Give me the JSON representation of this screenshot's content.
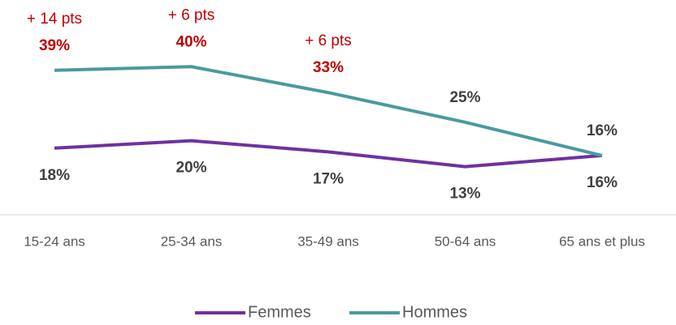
{
  "chart_data": {
    "type": "line",
    "categories": [
      "15-24 ans",
      "25-34 ans",
      "35-49 ans",
      "50-64 ans",
      "65 ans et plus"
    ],
    "series": [
      {
        "name": "Femmes",
        "color": "#7030a0",
        "values": [
          18,
          20,
          17,
          13,
          16
        ],
        "value_labels": [
          "18%",
          "20%",
          "17%",
          "13%",
          "16%"
        ],
        "value_label_colors": [
          "#404040",
          "#404040",
          "#404040",
          "#404040",
          "#404040"
        ]
      },
      {
        "name": "Hommes",
        "color": "#4a9a9e",
        "values": [
          39,
          40,
          33,
          25,
          16
        ],
        "value_labels": [
          "39%",
          "40%",
          "33%",
          "25%",
          "16%"
        ],
        "value_label_colors": [
          "#c00000",
          "#c00000",
          "#c00000",
          "#404040",
          "#404040"
        ]
      }
    ],
    "annotations": [
      "+ 14 pts",
      "+ 6 pts",
      "+ 6 pts"
    ],
    "annotation_color": "#c00000",
    "ylim": [
      0,
      58
    ],
    "legend": "bottom"
  }
}
